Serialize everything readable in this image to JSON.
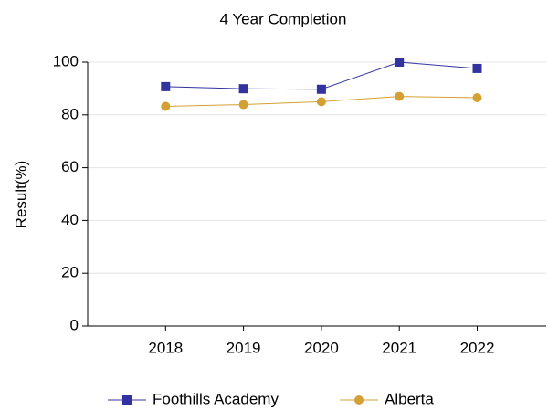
{
  "chart_data": {
    "type": "line",
    "title": "4 Year Completion",
    "y_label": "Result(%)",
    "categories": [
      "2018",
      "2019",
      "2020",
      "2021",
      "2022"
    ],
    "series": [
      {
        "name": "Foothills Academy",
        "color": "#33339f",
        "marker": "square",
        "values": [
          90.7,
          89.9,
          89.7,
          100,
          97.6
        ]
      },
      {
        "name": "Alberta",
        "color": "#d4a033",
        "marker": "circle",
        "values": [
          83.2,
          83.9,
          85.0,
          87.0,
          86.5
        ]
      }
    ],
    "ylim": [
      0,
      100
    ],
    "yticks": [
      0,
      20,
      40,
      60,
      80,
      100
    ],
    "grid": true,
    "legend": "bottom"
  }
}
